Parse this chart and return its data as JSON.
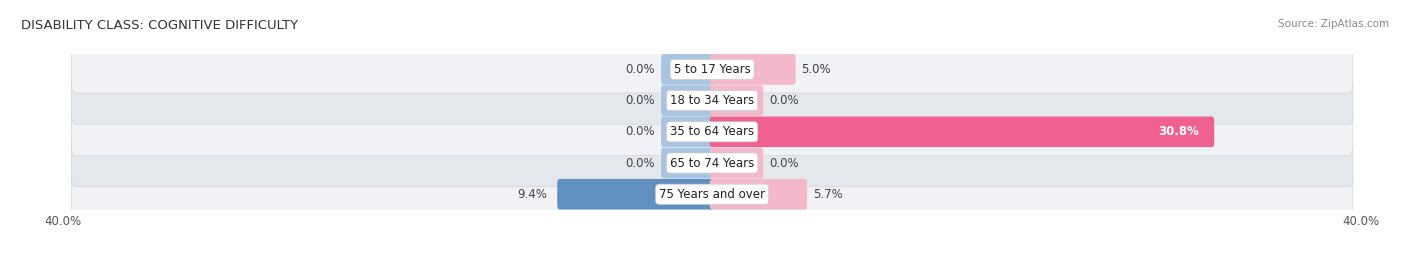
{
  "title": "DISABILITY CLASS: COGNITIVE DIFFICULTY",
  "source": "Source: ZipAtlas.com",
  "categories": [
    "5 to 17 Years",
    "18 to 34 Years",
    "35 to 64 Years",
    "65 to 74 Years",
    "75 Years and over"
  ],
  "male_values": [
    0.0,
    0.0,
    0.0,
    0.0,
    9.4
  ],
  "female_values": [
    5.0,
    0.0,
    30.8,
    0.0,
    5.7
  ],
  "male_labels": [
    "0.0%",
    "0.0%",
    "0.0%",
    "0.0%",
    "9.4%"
  ],
  "female_labels": [
    "5.0%",
    "0.0%",
    "30.8%",
    "0.0%",
    "5.7%"
  ],
  "axis_max": 40.0,
  "male_color": "#92b4d4",
  "female_color_light": "#f4b8cb",
  "female_color_bright": "#f06090",
  "female_colors": [
    "#f4b8cb",
    "#f4b8cb",
    "#f06090",
    "#f4b8cb",
    "#f4b8cb"
  ],
  "male_color_dark": "#6090c0",
  "male_colors": [
    "#a8c4e0",
    "#a8c4e0",
    "#a8c4e0",
    "#a8c4e0",
    "#6090c0"
  ],
  "row_bg_light": "#f0f2f5",
  "row_bg_dark": "#e4e8ed",
  "min_stub": 3.0,
  "title_fontsize": 9.5,
  "label_fontsize": 8.5,
  "tick_fontsize": 8.5,
  "source_fontsize": 7.5
}
